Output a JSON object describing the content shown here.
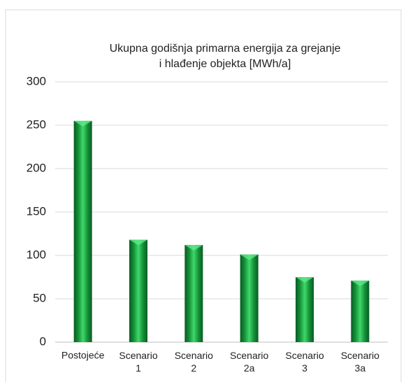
{
  "chart_data": {
    "type": "bar",
    "title": [
      "Ukupna godišnja primarna energija za grejanje",
      "i hlađenje objekta [MWh/a]"
    ],
    "categories": [
      "Postojeće",
      "Scenario 1",
      "Scenario 2",
      "Scenario 2a",
      "Scenario 3",
      "Scenario 3a"
    ],
    "values": [
      255,
      118,
      112,
      101,
      75,
      71
    ],
    "color": "#1a9e3f",
    "ylim": [
      0,
      300
    ],
    "yticks": [
      0,
      50,
      100,
      150,
      200,
      250,
      300
    ],
    "grid": true
  }
}
